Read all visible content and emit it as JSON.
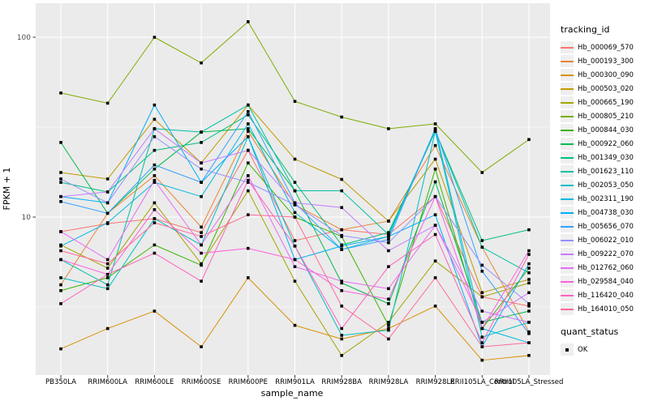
{
  "figure": {
    "y_axis_title": "FPKM + 1",
    "x_axis_title": "sample_name",
    "y_tick_labels": [
      "100",
      "10"
    ],
    "legend_title": "tracking_id",
    "quant_legend_title": "quant_status",
    "quant_legend_item": "OK"
  },
  "chart_data": {
    "type": "line",
    "title": "",
    "xlabel": "sample_name",
    "ylabel": "FPKM + 1",
    "y_scale": "log10",
    "y_major_ticks": [
      100,
      10
    ],
    "y_minor_gridlines": [
      31.62,
      3.162
    ],
    "ylim": [
      1.3,
      155
    ],
    "grid": "on",
    "panel_bg": "#EBEBEB",
    "grid_color": "#FFFFFF",
    "point_marker": "filled-black-square",
    "legend_title": "tracking_id",
    "legend_position": "right",
    "quant_status": {
      "title": "quant_status",
      "items": [
        {
          "label": "OK",
          "marker": "black-square"
        }
      ]
    },
    "categories": [
      "PB350LA",
      "RRIM600LA",
      "RRIM600LE",
      "RRIM600SE",
      "RRIM600PE",
      "RRIM901LA",
      "RRIM928BA",
      "RRIM928LA",
      "RRIM928LE",
      "RRII105LA_Control",
      "RRII105LA_Stressed"
    ],
    "series": [
      {
        "name": "Hb_000069_570",
        "color": "#F8766D",
        "values": [
          8.3,
          9.2,
          9.8,
          8.2,
          23.5,
          7.4,
          8.5,
          8.0,
          13.0,
          3.6,
          3.2
        ]
      },
      {
        "name": "Hb_000193_300",
        "color": "#EA8331",
        "values": [
          4.2,
          10.5,
          17.0,
          8.8,
          30.0,
          11.7,
          8.5,
          9.5,
          25.0,
          6.8,
          2.3
        ]
      },
      {
        "name": "Hb_000300_090",
        "color": "#D89000",
        "values": [
          1.85,
          2.4,
          3.0,
          1.9,
          4.6,
          2.5,
          2.1,
          2.4,
          3.2,
          1.6,
          1.7
        ]
      },
      {
        "name": "Hb_000503_020",
        "color": "#C09B00",
        "values": [
          17.7,
          16.3,
          35.0,
          20.0,
          42.0,
          21.0,
          16.2,
          9.5,
          21.0,
          3.8,
          4.5
        ]
      },
      {
        "name": "Hb_000665_190",
        "color": "#A3A500",
        "values": [
          7.0,
          5.2,
          12.0,
          5.5,
          14.0,
          4.4,
          1.7,
          2.6,
          5.7,
          3.6,
          4.3
        ]
      },
      {
        "name": "Hb_000805_210",
        "color": "#7CAE00",
        "values": [
          49.0,
          43.0,
          100.0,
          72.0,
          122.0,
          44.0,
          36.0,
          31.0,
          33.0,
          17.7,
          27.0
        ]
      },
      {
        "name": "Hb_000844_030",
        "color": "#39B600",
        "values": [
          3.9,
          4.6,
          7.0,
          5.4,
          20.0,
          10.0,
          7.8,
          2.5,
          18.5,
          2.4,
          5.2
        ]
      },
      {
        "name": "Hb_000922_060",
        "color": "#00BB4E",
        "values": [
          26.0,
          10.5,
          18.5,
          29.7,
          31.0,
          14.0,
          4.3,
          3.3,
          15.7,
          2.6,
          3.0
        ]
      },
      {
        "name": "Hb_001349_030",
        "color": "#00BF7D",
        "values": [
          15.6,
          13.8,
          23.5,
          26.0,
          37.0,
          15.6,
          7.0,
          8.2,
          30.0,
          7.4,
          8.5
        ]
      },
      {
        "name": "Hb_001623_110",
        "color": "#00C1A3",
        "values": [
          5.8,
          4.2,
          31.0,
          29.7,
          42.0,
          14.0,
          14.0,
          8.0,
          30.0,
          6.8,
          4.9
        ]
      },
      {
        "name": "Hb_002053_050",
        "color": "#00BFC4",
        "values": [
          4.6,
          4.0,
          9.8,
          7.0,
          28.0,
          6.9,
          2.2,
          2.35,
          30.0,
          2.15,
          2.6
        ]
      },
      {
        "name": "Hb_002311_190",
        "color": "#00BAE0",
        "values": [
          6.9,
          9.3,
          15.6,
          13.0,
          33.0,
          10.6,
          6.6,
          7.8,
          31.0,
          2.4,
          2.0
        ]
      },
      {
        "name": "Hb_004738_030",
        "color": "#00B0F6",
        "values": [
          13.0,
          12.0,
          42.0,
          15.6,
          28.0,
          5.8,
          6.9,
          7.8,
          10.3,
          1.9,
          5.5
        ]
      },
      {
        "name": "Hb_005656_070",
        "color": "#35A2FF",
        "values": [
          12.2,
          10.5,
          19.5,
          15.6,
          38.6,
          12.0,
          6.6,
          7.5,
          31.0,
          5.0,
          2.25
        ]
      },
      {
        "name": "Hb_006022_010",
        "color": "#9590FF",
        "values": [
          16.3,
          12.0,
          28.0,
          18.5,
          15.6,
          11.7,
          7.9,
          7.2,
          13.0,
          5.4,
          3.3
        ]
      },
      {
        "name": "Hb_009222_070",
        "color": "#C77CFF",
        "values": [
          13.0,
          13.8,
          31.0,
          20.0,
          23.5,
          12.0,
          11.3,
          6.5,
          9.0,
          3.0,
          2.6
        ]
      },
      {
        "name": "Hb_012762_060",
        "color": "#E76BF3",
        "values": [
          8.3,
          5.8,
          16.0,
          7.0,
          17.0,
          5.3,
          4.4,
          4.0,
          9.0,
          2.6,
          3.8
        ]
      },
      {
        "name": "Hb_029584_040",
        "color": "#FA62DB",
        "values": [
          5.8,
          4.8,
          11.0,
          6.3,
          6.7,
          5.8,
          3.9,
          3.5,
          13.0,
          2.4,
          6.5
        ]
      },
      {
        "name": "Hb_116420_040",
        "color": "#FF62BC",
        "values": [
          3.3,
          4.8,
          6.3,
          4.4,
          16.0,
          6.9,
          2.4,
          5.3,
          8.0,
          2.0,
          6.2
        ]
      },
      {
        "name": "Hb_164010_050",
        "color": "#FF6A98",
        "values": [
          6.5,
          5.5,
          9.3,
          7.8,
          10.3,
          10.0,
          3.2,
          2.1,
          4.6,
          1.9,
          2.0
        ]
      }
    ]
  }
}
